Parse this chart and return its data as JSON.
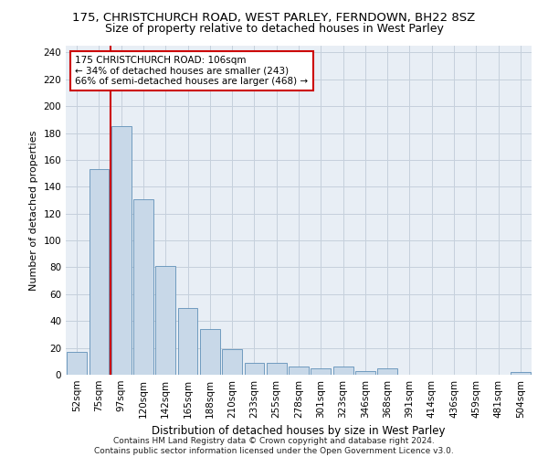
{
  "title1": "175, CHRISTCHURCH ROAD, WEST PARLEY, FERNDOWN, BH22 8SZ",
  "title2": "Size of property relative to detached houses in West Parley",
  "xlabel": "Distribution of detached houses by size in West Parley",
  "ylabel": "Number of detached properties",
  "categories": [
    "52sqm",
    "75sqm",
    "97sqm",
    "120sqm",
    "142sqm",
    "165sqm",
    "188sqm",
    "210sqm",
    "233sqm",
    "255sqm",
    "278sqm",
    "301sqm",
    "323sqm",
    "346sqm",
    "368sqm",
    "391sqm",
    "414sqm",
    "436sqm",
    "459sqm",
    "481sqm",
    "504sqm"
  ],
  "values": [
    17,
    153,
    185,
    131,
    81,
    50,
    34,
    19,
    9,
    9,
    6,
    5,
    6,
    3,
    5,
    0,
    0,
    0,
    0,
    0,
    2
  ],
  "bar_color": "#c8d8e8",
  "bar_edge_color": "#6090b8",
  "vline_color": "#cc0000",
  "annotation_text": "175 CHRISTCHURCH ROAD: 106sqm\n← 34% of detached houses are smaller (243)\n66% of semi-detached houses are larger (468) →",
  "annotation_box_facecolor": "#ffffff",
  "annotation_box_edgecolor": "#cc0000",
  "bg_color": "#e8eef5",
  "ylim": [
    0,
    245
  ],
  "yticks": [
    0,
    20,
    40,
    60,
    80,
    100,
    120,
    140,
    160,
    180,
    200,
    220,
    240
  ],
  "grid_color": "#c5d0dc",
  "footer": "Contains HM Land Registry data © Crown copyright and database right 2024.\nContains public sector information licensed under the Open Government Licence v3.0.",
  "title1_fontsize": 9.5,
  "title2_fontsize": 9,
  "xlabel_fontsize": 8.5,
  "ylabel_fontsize": 8,
  "tick_fontsize": 7.5,
  "annotation_fontsize": 7.5,
  "footer_fontsize": 6.5
}
